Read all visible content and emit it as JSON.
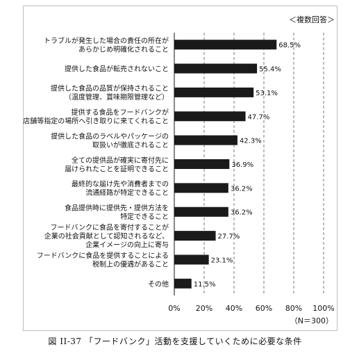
{
  "chart_data": {
    "type": "bar",
    "orientation": "horizontal",
    "note": "＜複数回答＞",
    "sample_size_label": "（N＝300）",
    "caption": "図 II-37 「フードバンク」活動を支援していくために必要な条件",
    "bar_color": "#1a1a1a",
    "xlim": [
      0,
      100
    ],
    "x_ticks": [
      "0%",
      "20%",
      "40%",
      "60%",
      "80%",
      "100%"
    ],
    "grid": "vertical dashed",
    "categories": [
      [
        "トラブルが発生した場合の責任の所在が",
        "あらかじめ明確化されること"
      ],
      [
        "提供した食品が転売されないこと"
      ],
      [
        "提供した食品の品質が保持されること",
        "（温度管理、賞味期限管理など）"
      ],
      [
        "提供する食品をフードバンクが",
        "店舗等指定の場所へ引き取りに来てくれること"
      ],
      [
        "提供した食品のラベルやパッケージの",
        "取扱いが徹底されること"
      ],
      [
        "全ての提供品が確実に寄付先に",
        "届けられたことを証明できること"
      ],
      [
        "最終的な届け先や消費者までの",
        "流通経路が特定できること"
      ],
      [
        "食品提供時に提供先・提供方法を",
        "特定できること"
      ],
      [
        "フードバンクに食品を寄付することが",
        "企業の社会貢献として認知されるなど、",
        "企業イメージの向上に寄与"
      ],
      [
        "フードバンクに食品を提供することによる",
        "税制上の優遇があること"
      ],
      [
        "その他"
      ]
    ],
    "values": [
      68.5,
      55.4,
      53.1,
      47.7,
      42.3,
      36.9,
      36.2,
      36.2,
      27.7,
      23.1,
      11.5
    ],
    "value_labels": [
      "68.5%",
      "55.4%",
      "53.1%",
      "47.7%",
      "42.3%",
      "36.9%",
      "36.2%",
      "36.2%",
      "27.7%",
      "23.1%",
      "11.5%"
    ]
  }
}
